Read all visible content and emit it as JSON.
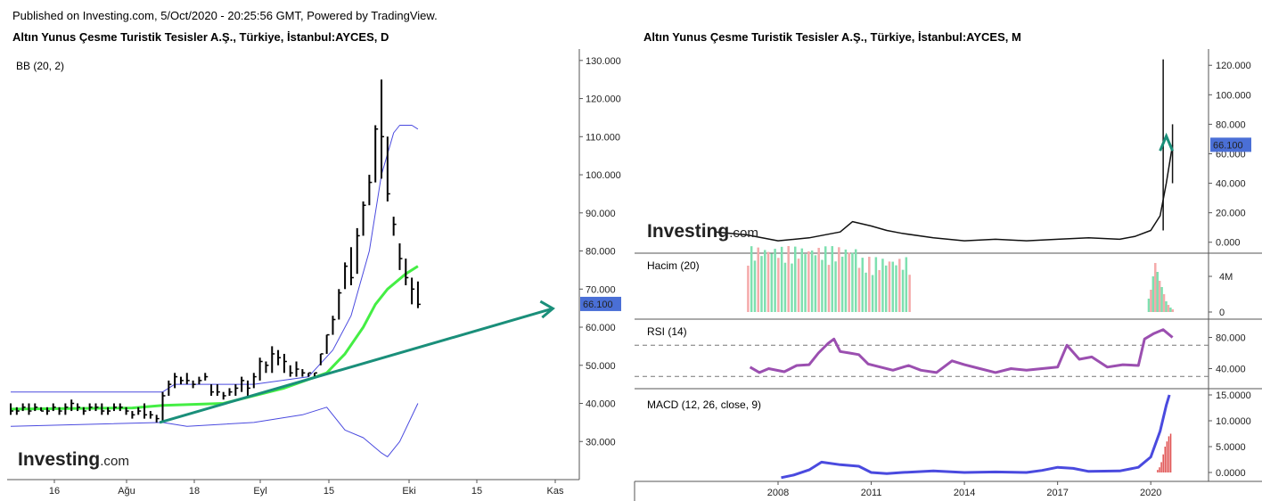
{
  "header": "Published on Investing.com, 5/Oct/2020 - 20:25:56 GMT, Powered by TradingView.",
  "logo": {
    "brand": "Investing",
    "suffix": ".com"
  },
  "colors": {
    "price_tag": "#4a6fd6",
    "bb_band": "#4a4adf",
    "bb_mid": "#44ee44",
    "trend": "#1a8f7a",
    "rsi": "#9b4fb0",
    "macd": "#4a4adf",
    "vol_up": "#7ee0b0",
    "vol_down": "#f5aaaa"
  },
  "chart_data": [
    {
      "type": "line",
      "title": "Altın Yunus Çesme Turistik Tesisler A.Ş., Türkiye, İstanbul:AYCES, D",
      "indicator": "BB (20, 2)",
      "x_ticks": [
        "16",
        "Ağu",
        "18",
        "Eyl",
        "15",
        "Eki",
        "15",
        "Kas"
      ],
      "y_ticks": [
        "30.000",
        "40.000",
        "50.000",
        "60.000",
        "70.000",
        "80.000",
        "90.000",
        "100.000",
        "110.000",
        "120.000",
        "130.000"
      ],
      "ylim": [
        20,
        133
      ],
      "last_price": "66.100",
      "bars": [
        [
          40,
          37,
          38
        ],
        [
          39,
          37,
          38
        ],
        [
          40,
          38,
          39
        ],
        [
          40,
          37,
          38
        ],
        [
          40,
          38,
          39
        ],
        [
          39,
          38,
          38
        ],
        [
          39,
          37,
          38
        ],
        [
          40,
          38,
          39
        ],
        [
          39,
          37,
          38
        ],
        [
          40,
          37,
          39
        ],
        [
          41,
          38,
          40
        ],
        [
          40,
          38,
          39
        ],
        [
          39,
          37,
          38
        ],
        [
          40,
          38,
          39
        ],
        [
          40,
          38,
          39
        ],
        [
          40,
          37,
          38
        ],
        [
          39,
          37,
          38
        ],
        [
          40,
          38,
          39
        ],
        [
          40,
          38,
          39
        ],
        [
          39,
          37,
          38
        ],
        [
          38,
          36,
          37
        ],
        [
          39,
          37,
          38
        ],
        [
          40,
          36,
          37
        ],
        [
          38,
          36,
          37
        ],
        [
          37,
          35,
          36
        ],
        [
          43,
          35,
          42
        ],
        [
          46,
          42,
          45
        ],
        [
          48,
          44,
          47
        ],
        [
          47,
          45,
          46
        ],
        [
          48,
          45,
          46
        ],
        [
          46,
          44,
          45
        ],
        [
          47,
          45,
          46
        ],
        [
          48,
          46,
          47
        ],
        [
          45,
          42,
          43
        ],
        [
          45,
          42,
          43
        ],
        [
          43,
          41,
          42
        ],
        [
          44,
          42,
          43
        ],
        [
          45,
          42,
          44
        ],
        [
          47,
          43,
          46
        ],
        [
          46,
          42,
          44
        ],
        [
          48,
          44,
          47
        ],
        [
          52,
          46,
          51
        ],
        [
          51,
          48,
          50
        ],
        [
          55,
          48,
          53
        ],
        [
          54,
          50,
          52
        ],
        [
          53,
          48,
          51
        ],
        [
          50,
          47,
          48
        ],
        [
          51,
          47,
          49
        ],
        [
          49,
          47,
          48
        ],
        [
          48,
          47,
          48
        ],
        [
          48,
          47,
          48
        ],
        [
          53,
          50,
          53
        ],
        [
          58,
          53,
          58
        ],
        [
          63,
          58,
          62
        ],
        [
          70,
          62,
          69
        ],
        [
          77,
          70,
          76
        ],
        [
          81,
          71,
          73
        ],
        [
          86,
          74,
          84
        ],
        [
          93,
          84,
          92
        ],
        [
          100,
          92,
          98
        ],
        [
          113,
          98,
          112
        ],
        [
          125,
          99,
          110
        ],
        [
          110,
          93,
          95
        ],
        [
          89,
          84,
          87
        ],
        [
          82,
          75,
          78
        ],
        [
          78,
          71,
          73
        ],
        [
          73,
          66,
          70
        ],
        [
          72,
          65,
          66
        ]
      ],
      "bb_upper": [
        [
          0,
          43
        ],
        [
          25,
          43
        ],
        [
          27,
          45
        ],
        [
          40,
          45
        ],
        [
          49,
          47
        ],
        [
          53,
          54
        ],
        [
          56,
          63
        ],
        [
          59,
          80
        ],
        [
          61,
          100
        ],
        [
          63,
          111
        ],
        [
          64,
          113
        ],
        [
          66,
          113
        ],
        [
          67,
          112
        ]
      ],
      "bb_mid": [
        [
          0,
          38.5
        ],
        [
          20,
          38.8
        ],
        [
          25,
          39.5
        ],
        [
          35,
          40
        ],
        [
          45,
          44
        ],
        [
          52,
          48
        ],
        [
          55,
          53
        ],
        [
          58,
          60
        ],
        [
          60,
          66
        ],
        [
          62,
          70
        ],
        [
          65,
          74
        ],
        [
          67,
          76
        ]
      ],
      "bb_lower": [
        [
          0,
          34
        ],
        [
          25,
          35
        ],
        [
          29,
          34
        ],
        [
          40,
          35
        ],
        [
          48,
          37
        ],
        [
          52,
          39
        ],
        [
          55,
          33
        ],
        [
          58,
          31
        ],
        [
          61,
          27
        ],
        [
          62,
          26
        ],
        [
          64,
          30
        ],
        [
          67,
          40
        ]
      ],
      "trendline": [
        [
          24.5,
          35
        ],
        [
          76,
          67
        ]
      ]
    },
    {
      "type": "line",
      "title": "Altın Yunus Çesme Turistik Tesisler A.Ş., Türkiye, İstanbul:AYCES, M",
      "x_ticks": [
        "2008",
        "2011",
        "2014",
        "2017",
        "2020"
      ],
      "y_ticks": [
        "0.000",
        "20.000",
        "40.000",
        "60.000",
        "80.000",
        "100.000",
        "120.000"
      ],
      "ylim": [
        -5,
        128
      ],
      "last_price": "66.100",
      "price": [
        [
          2006,
          7
        ],
        [
          2007,
          5
        ],
        [
          2008,
          1
        ],
        [
          2009,
          3
        ],
        [
          2010,
          7
        ],
        [
          2010.4,
          14
        ],
        [
          2011,
          11
        ],
        [
          2011.5,
          8
        ],
        [
          2012,
          6
        ],
        [
          2013,
          3
        ],
        [
          2014,
          1
        ],
        [
          2015,
          2
        ],
        [
          2016,
          1
        ],
        [
          2017,
          2
        ],
        [
          2018,
          3
        ],
        [
          2019,
          2
        ],
        [
          2019.5,
          4
        ],
        [
          2020,
          8
        ],
        [
          2020.3,
          18
        ],
        [
          2020.5,
          40
        ],
        [
          2020.7,
          66
        ]
      ],
      "volume_label": "Hacim (20)",
      "volume_ticks": [
        "0",
        "4M"
      ],
      "rsi_label": "RSI (14)",
      "rsi_ticks": [
        "40.000",
        "80.000"
      ],
      "rsi": [
        [
          2007.1,
          42
        ],
        [
          2007.4,
          35
        ],
        [
          2007.7,
          40
        ],
        [
          2008.2,
          36
        ],
        [
          2008.6,
          44
        ],
        [
          2009,
          45
        ],
        [
          2009.3,
          60
        ],
        [
          2009.6,
          72
        ],
        [
          2009.8,
          78
        ],
        [
          2010,
          62
        ],
        [
          2010.3,
          60
        ],
        [
          2010.6,
          58
        ],
        [
          2010.9,
          46
        ],
        [
          2011.3,
          42
        ],
        [
          2011.7,
          38
        ],
        [
          2012.2,
          44
        ],
        [
          2012.6,
          38
        ],
        [
          2013.1,
          35
        ],
        [
          2013.6,
          50
        ],
        [
          2014,
          45
        ],
        [
          2014.5,
          40
        ],
        [
          2015,
          35
        ],
        [
          2015.5,
          40
        ],
        [
          2016,
          38
        ],
        [
          2016.5,
          40
        ],
        [
          2017,
          42
        ],
        [
          2017.3,
          70
        ],
        [
          2017.7,
          52
        ],
        [
          2018.1,
          55
        ],
        [
          2018.6,
          42
        ],
        [
          2019.1,
          45
        ],
        [
          2019.6,
          44
        ],
        [
          2019.8,
          78
        ],
        [
          2020.1,
          85
        ],
        [
          2020.4,
          90
        ],
        [
          2020.7,
          80
        ]
      ],
      "macd_label": "MACD (12, 26, close, 9)",
      "macd_ticks": [
        "0.0000",
        "5.0000",
        "10.0000",
        "15.0000"
      ],
      "macd": [
        [
          2008.1,
          -1
        ],
        [
          2008.5,
          -0.5
        ],
        [
          2009,
          0.5
        ],
        [
          2009.4,
          2
        ],
        [
          2010,
          1.5
        ],
        [
          2010.6,
          1.2
        ],
        [
          2011,
          0
        ],
        [
          2011.5,
          -0.2
        ],
        [
          2012,
          0
        ],
        [
          2013,
          0.3
        ],
        [
          2014,
          0
        ],
        [
          2015,
          0.1
        ],
        [
          2016,
          0
        ],
        [
          2016.5,
          0.4
        ],
        [
          2017,
          1
        ],
        [
          2017.5,
          0.8
        ],
        [
          2018,
          0.2
        ],
        [
          2019,
          0.3
        ],
        [
          2019.6,
          1
        ],
        [
          2020,
          3
        ],
        [
          2020.3,
          8
        ],
        [
          2020.5,
          13
        ],
        [
          2020.6,
          15
        ]
      ]
    }
  ]
}
